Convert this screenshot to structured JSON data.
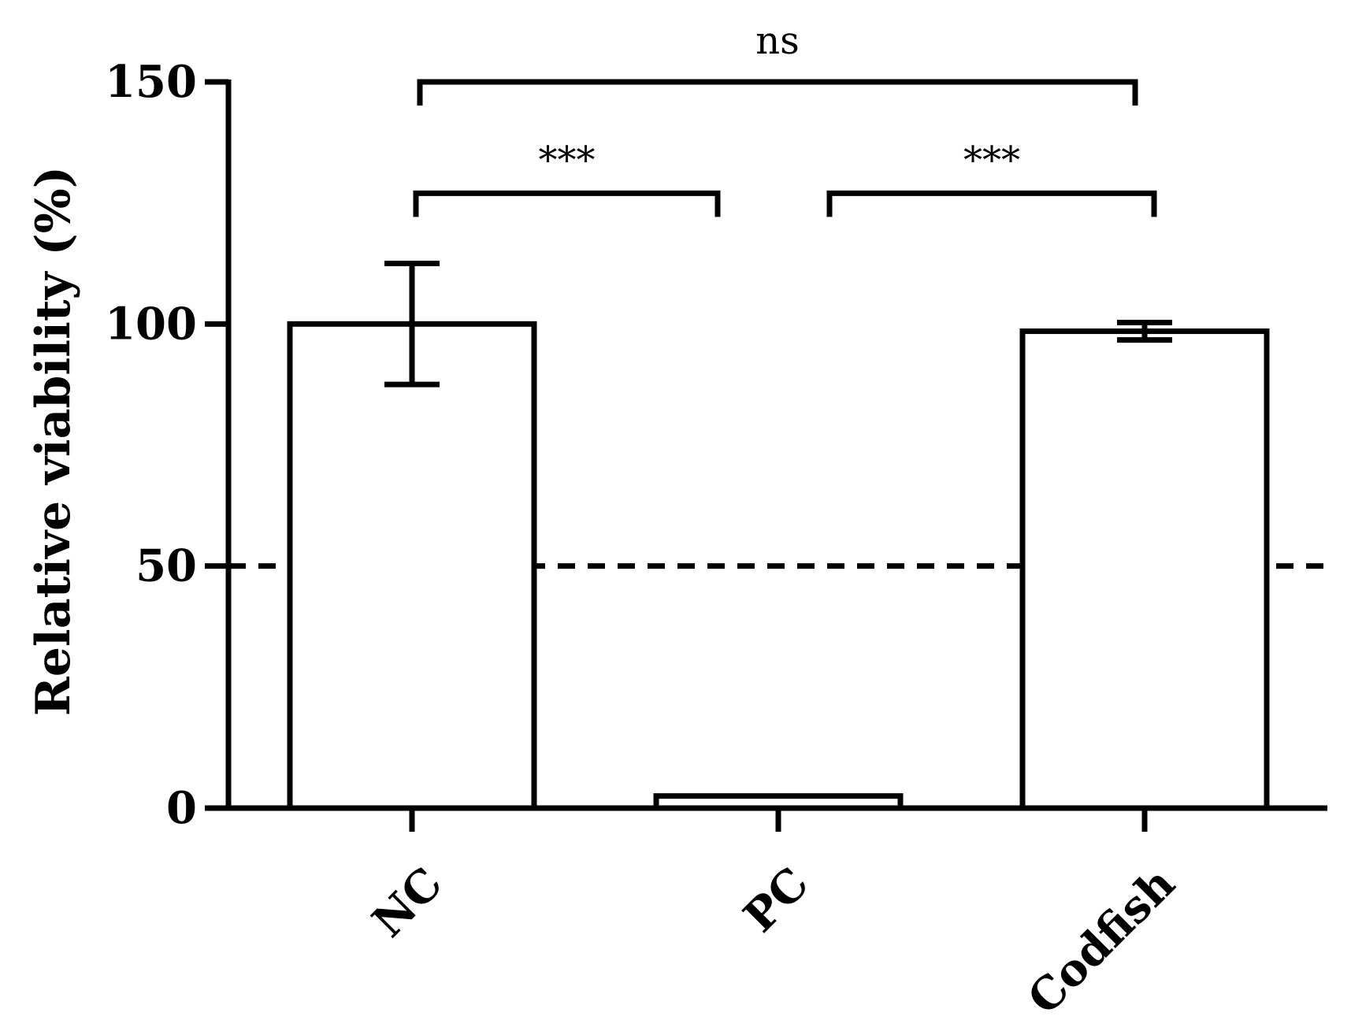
{
  "chart_data": {
    "type": "bar",
    "categories": [
      "NC",
      "PC",
      "Codfish"
    ],
    "values": [
      100,
      2.5,
      98.5
    ],
    "errors": [
      12.5,
      0.3,
      1.8
    ],
    "ylabel": "Relative viability (%)",
    "xlabel": "",
    "ylim": [
      0,
      150
    ],
    "yticks": [
      0,
      50,
      100,
      150
    ],
    "reference_line": {
      "y": 50,
      "style": "dashed"
    },
    "grid": false,
    "bar_fill": "#ffffff",
    "bar_stroke": "#000000",
    "significance": [
      {
        "from": "NC",
        "to": "Codfish",
        "label": "ns"
      },
      {
        "from": "NC",
        "to": "PC",
        "label": "***"
      },
      {
        "from": "PC",
        "to": "Codfish",
        "label": "***"
      }
    ]
  }
}
